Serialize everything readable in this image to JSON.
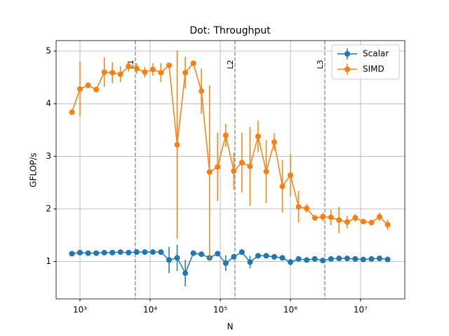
{
  "chart_data": {
    "type": "errorbar_line",
    "title": "Dot: Throughput",
    "xlabel": "N",
    "ylabel": "GFLOP/s",
    "xscale": "log",
    "xlim": [
      457,
      42700000
    ],
    "ylim": [
      0.29,
      5.2
    ],
    "xticks": [
      {
        "value": 1000,
        "label": "10³"
      },
      {
        "value": 10000,
        "label": "10⁴"
      },
      {
        "value": 100000,
        "label": "10⁵"
      },
      {
        "value": 1000000,
        "label": "10⁶"
      },
      {
        "value": 10000000,
        "label": "10⁷"
      }
    ],
    "yticks": [
      1,
      2,
      3,
      4,
      5
    ],
    "grid": true,
    "legend": "upper right",
    "x": [
      767,
      1000,
      1306,
      1703,
      2223,
      2897,
      3777,
      4932,
      6427,
      8395,
      10940,
      14260,
      18620,
      24270,
      31700,
      41300,
      53830,
      70310,
      91620,
      119700,
      156000,
      203200,
      265500,
      345900,
      451900,
      588800,
      767400,
      1002000,
      1306000,
      1706000,
      2223000,
      2897000,
      3784000,
      4932000,
      6442000,
      8395000,
      10940000,
      14290000,
      18620000,
      24320000
    ],
    "series": [
      {
        "name": "Scalar",
        "color": "#1f77b4",
        "values": [
          1.15,
          1.17,
          1.16,
          1.16,
          1.17,
          1.17,
          1.18,
          1.17,
          1.18,
          1.18,
          1.18,
          1.18,
          1.03,
          1.07,
          0.78,
          1.16,
          1.14,
          1.07,
          1.15,
          0.97,
          1.09,
          1.18,
          0.99,
          1.11,
          1.11,
          1.09,
          1.07,
          0.99,
          1.05,
          1.03,
          1.05,
          1.02,
          1.05,
          1.06,
          1.06,
          1.05,
          1.04,
          1.05,
          1.06,
          1.04
        ],
        "errors": [
          0.02,
          0.02,
          0.02,
          0.02,
          0.02,
          0.02,
          0.02,
          0.02,
          0.02,
          0.02,
          0.02,
          0.02,
          0.25,
          0.25,
          0.25,
          0.02,
          0.02,
          0.05,
          0.02,
          0.15,
          0.02,
          0.02,
          0.12,
          0.02,
          0.02,
          0.02,
          0.02,
          0.06,
          0.02,
          0.02,
          0.02,
          0.02,
          0.02,
          0.02,
          0.02,
          0.02,
          0.02,
          0.02,
          0.02,
          0.02
        ]
      },
      {
        "name": "SIMD",
        "color": "#ff7f0e",
        "values": [
          3.84,
          4.28,
          4.35,
          4.27,
          4.6,
          4.59,
          4.56,
          4.71,
          4.67,
          4.6,
          4.65,
          4.59,
          4.73,
          3.22,
          4.59,
          4.77,
          4.24,
          2.7,
          2.8,
          3.4,
          2.72,
          2.88,
          2.81,
          3.38,
          2.71,
          3.27,
          2.43,
          2.64,
          2.04,
          2.01,
          1.83,
          1.85,
          1.84,
          1.79,
          1.75,
          1.83,
          1.76,
          1.74,
          1.85,
          1.7
        ],
        "errors": [
          0.02,
          0.52,
          0.05,
          0.05,
          0.28,
          0.2,
          0.15,
          0.1,
          0.1,
          0.1,
          0.12,
          0.18,
          0.05,
          1.79,
          0.3,
          0.05,
          0.43,
          1.65,
          0.65,
          0.22,
          0.35,
          0.57,
          0.75,
          0.3,
          0.6,
          0.17,
          0.5,
          0.4,
          0.3,
          0.08,
          0.05,
          0.08,
          0.15,
          0.25,
          0.12,
          0.07,
          0.05,
          0.05,
          0.08,
          0.1
        ]
      }
    ],
    "vlines": [
      {
        "x": 6144,
        "label": "L1"
      },
      {
        "x": 162000,
        "label": "L2"
      },
      {
        "x": 3100000,
        "label": "L3"
      }
    ]
  }
}
